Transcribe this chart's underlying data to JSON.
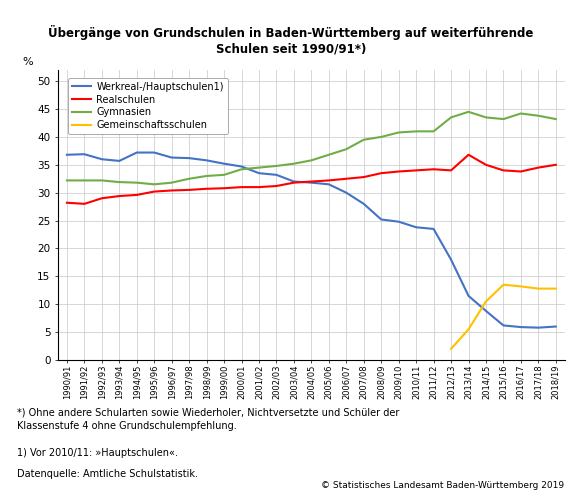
{
  "title": "Übergänge von Grundschulen in Baden-Württemberg auf weiterführende\nSchulen seit 1990/91*)",
  "ylabel": "%",
  "ylim": [
    0,
    52
  ],
  "yticks": [
    0,
    5,
    10,
    15,
    20,
    25,
    30,
    35,
    40,
    45,
    50
  ],
  "footnote1": "*) Ohne andere Schularten sowie Wiederholer, Nichtversetzte und Schüler der\nKlassenstufe 4 ohne Grundschulempfehlung.",
  "footnote2": "1) Vor 2010/11: »Hauptschulen«.",
  "footnote3": "Datenquelle: Amtliche Schulstatistik.",
  "footnote_right": "© Statistisches Landesamt Baden-Württemberg 2019",
  "x_labels": [
    "1990/91",
    "1991/92",
    "1992/93",
    "1993/94",
    "1994/95",
    "1995/96",
    "1996/97",
    "1997/98",
    "1998/99",
    "1999/00",
    "2000/01",
    "2001/02",
    "2002/03",
    "2003/04",
    "2004/05",
    "2005/06",
    "2006/07",
    "2007/08",
    "2008/09",
    "2009/10",
    "2010/11",
    "2011/12",
    "2012/13",
    "2013/14",
    "2014/15",
    "2015/16",
    "2016/17",
    "2017/18",
    "2018/19"
  ],
  "series": {
    "Werkreal-/Hauptschulen1)": {
      "color": "#4472C4",
      "data": [
        36.8,
        36.9,
        36.0,
        35.7,
        37.2,
        37.2,
        36.3,
        36.2,
        35.8,
        35.2,
        34.7,
        33.5,
        33.2,
        32.0,
        31.8,
        31.5,
        30.0,
        28.0,
        25.2,
        24.8,
        23.8,
        23.5,
        18.0,
        11.5,
        8.8,
        6.2,
        5.9,
        5.8,
        6.0
      ]
    },
    "Realschulen": {
      "color": "#FF0000",
      "data": [
        28.2,
        28.0,
        29.0,
        29.4,
        29.6,
        30.2,
        30.4,
        30.5,
        30.7,
        30.8,
        31.0,
        31.0,
        31.2,
        31.8,
        32.0,
        32.2,
        32.5,
        32.8,
        33.5,
        33.8,
        34.0,
        34.2,
        34.0,
        36.8,
        35.0,
        34.0,
        33.8,
        34.5,
        35.0
      ]
    },
    "Gymnasien": {
      "color": "#70AD47",
      "data": [
        32.2,
        32.2,
        32.2,
        31.9,
        31.8,
        31.5,
        31.8,
        32.5,
        33.0,
        33.2,
        34.2,
        34.5,
        34.8,
        35.2,
        35.8,
        36.8,
        37.8,
        39.5,
        40.0,
        40.8,
        41.0,
        41.0,
        43.5,
        44.5,
        43.5,
        43.2,
        44.2,
        43.8,
        43.2
      ]
    },
    "Gemeinschaftsschulen": {
      "color": "#FFC000",
      "data": [
        null,
        null,
        null,
        null,
        null,
        null,
        null,
        null,
        null,
        null,
        null,
        null,
        null,
        null,
        null,
        null,
        null,
        null,
        null,
        null,
        null,
        null,
        2.0,
        5.5,
        10.5,
        13.5,
        13.2,
        12.8,
        12.8
      ]
    }
  },
  "background_color": "#FFFFFF",
  "plot_bg_color": "#FFFFFF",
  "grid_color": "#C8C8C8"
}
